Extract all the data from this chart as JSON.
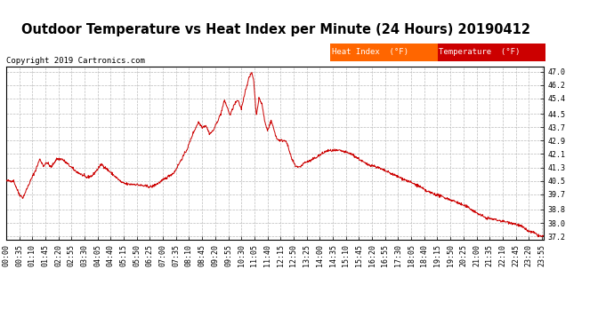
{
  "title": "Outdoor Temperature vs Heat Index per Minute (24 Hours) 20190412",
  "copyright": "Copyright 2019 Cartronics.com",
  "legend_labels": [
    "Heat Index  (°F)",
    "Temperature  (°F)"
  ],
  "legend_colors": [
    "#ff6600",
    "#cc0000"
  ],
  "line_color": "#cc0000",
  "background_color": "#ffffff",
  "grid_color": "#bbbbbb",
  "ylim": [
    37.0,
    47.3
  ],
  "yticks": [
    37.2,
    38.0,
    38.8,
    39.7,
    40.5,
    41.3,
    42.1,
    42.9,
    43.7,
    44.5,
    45.4,
    46.2,
    47.0
  ],
  "title_fontsize": 10.5,
  "tick_fontsize": 6.0,
  "copyright_fontsize": 6.5,
  "legend_fontsize": 6.5,
  "keypoints": [
    [
      0,
      40.5
    ],
    [
      20,
      40.5
    ],
    [
      35,
      39.7
    ],
    [
      45,
      39.5
    ],
    [
      55,
      40.0
    ],
    [
      65,
      40.5
    ],
    [
      80,
      41.2
    ],
    [
      90,
      41.8
    ],
    [
      100,
      41.4
    ],
    [
      110,
      41.6
    ],
    [
      120,
      41.3
    ],
    [
      135,
      41.8
    ],
    [
      150,
      41.8
    ],
    [
      165,
      41.5
    ],
    [
      175,
      41.3
    ],
    [
      185,
      41.1
    ],
    [
      200,
      40.9
    ],
    [
      215,
      40.7
    ],
    [
      230,
      40.8
    ],
    [
      245,
      41.2
    ],
    [
      255,
      41.5
    ],
    [
      265,
      41.3
    ],
    [
      280,
      41.0
    ],
    [
      295,
      40.7
    ],
    [
      310,
      40.4
    ],
    [
      325,
      40.3
    ],
    [
      345,
      40.3
    ],
    [
      370,
      40.2
    ],
    [
      390,
      40.15
    ],
    [
      410,
      40.4
    ],
    [
      430,
      40.7
    ],
    [
      450,
      41.0
    ],
    [
      470,
      41.8
    ],
    [
      485,
      42.4
    ],
    [
      500,
      43.3
    ],
    [
      515,
      44.0
    ],
    [
      525,
      43.7
    ],
    [
      535,
      43.8
    ],
    [
      545,
      43.3
    ],
    [
      555,
      43.5
    ],
    [
      565,
      44.0
    ],
    [
      575,
      44.5
    ],
    [
      585,
      45.3
    ],
    [
      600,
      44.4
    ],
    [
      610,
      45.0
    ],
    [
      620,
      45.3
    ],
    [
      630,
      44.8
    ],
    [
      640,
      45.8
    ],
    [
      650,
      46.6
    ],
    [
      658,
      46.95
    ],
    [
      663,
      46.5
    ],
    [
      670,
      44.4
    ],
    [
      677,
      45.4
    ],
    [
      685,
      45.1
    ],
    [
      693,
      44.0
    ],
    [
      700,
      43.5
    ],
    [
      710,
      44.1
    ],
    [
      718,
      43.5
    ],
    [
      725,
      43.0
    ],
    [
      735,
      42.9
    ],
    [
      750,
      42.9
    ],
    [
      765,
      41.8
    ],
    [
      775,
      41.4
    ],
    [
      785,
      41.3
    ],
    [
      800,
      41.6
    ],
    [
      815,
      41.7
    ],
    [
      830,
      41.9
    ],
    [
      845,
      42.1
    ],
    [
      860,
      42.3
    ],
    [
      875,
      42.3
    ],
    [
      895,
      42.3
    ],
    [
      910,
      42.2
    ],
    [
      925,
      42.1
    ],
    [
      945,
      41.8
    ],
    [
      965,
      41.5
    ],
    [
      985,
      41.4
    ],
    [
      1005,
      41.2
    ],
    [
      1025,
      41.0
    ],
    [
      1045,
      40.8
    ],
    [
      1065,
      40.6
    ],
    [
      1085,
      40.4
    ],
    [
      1105,
      40.2
    ],
    [
      1125,
      39.9
    ],
    [
      1150,
      39.7
    ],
    [
      1175,
      39.5
    ],
    [
      1200,
      39.3
    ],
    [
      1220,
      39.1
    ],
    [
      1240,
      38.9
    ],
    [
      1260,
      38.6
    ],
    [
      1285,
      38.3
    ],
    [
      1310,
      38.2
    ],
    [
      1330,
      38.1
    ],
    [
      1355,
      38.0
    ],
    [
      1380,
      37.8
    ],
    [
      1400,
      37.5
    ],
    [
      1415,
      37.4
    ],
    [
      1425,
      37.25
    ],
    [
      1435,
      37.2
    ],
    [
      1439,
      37.2
    ]
  ],
  "xtick_step": 35
}
